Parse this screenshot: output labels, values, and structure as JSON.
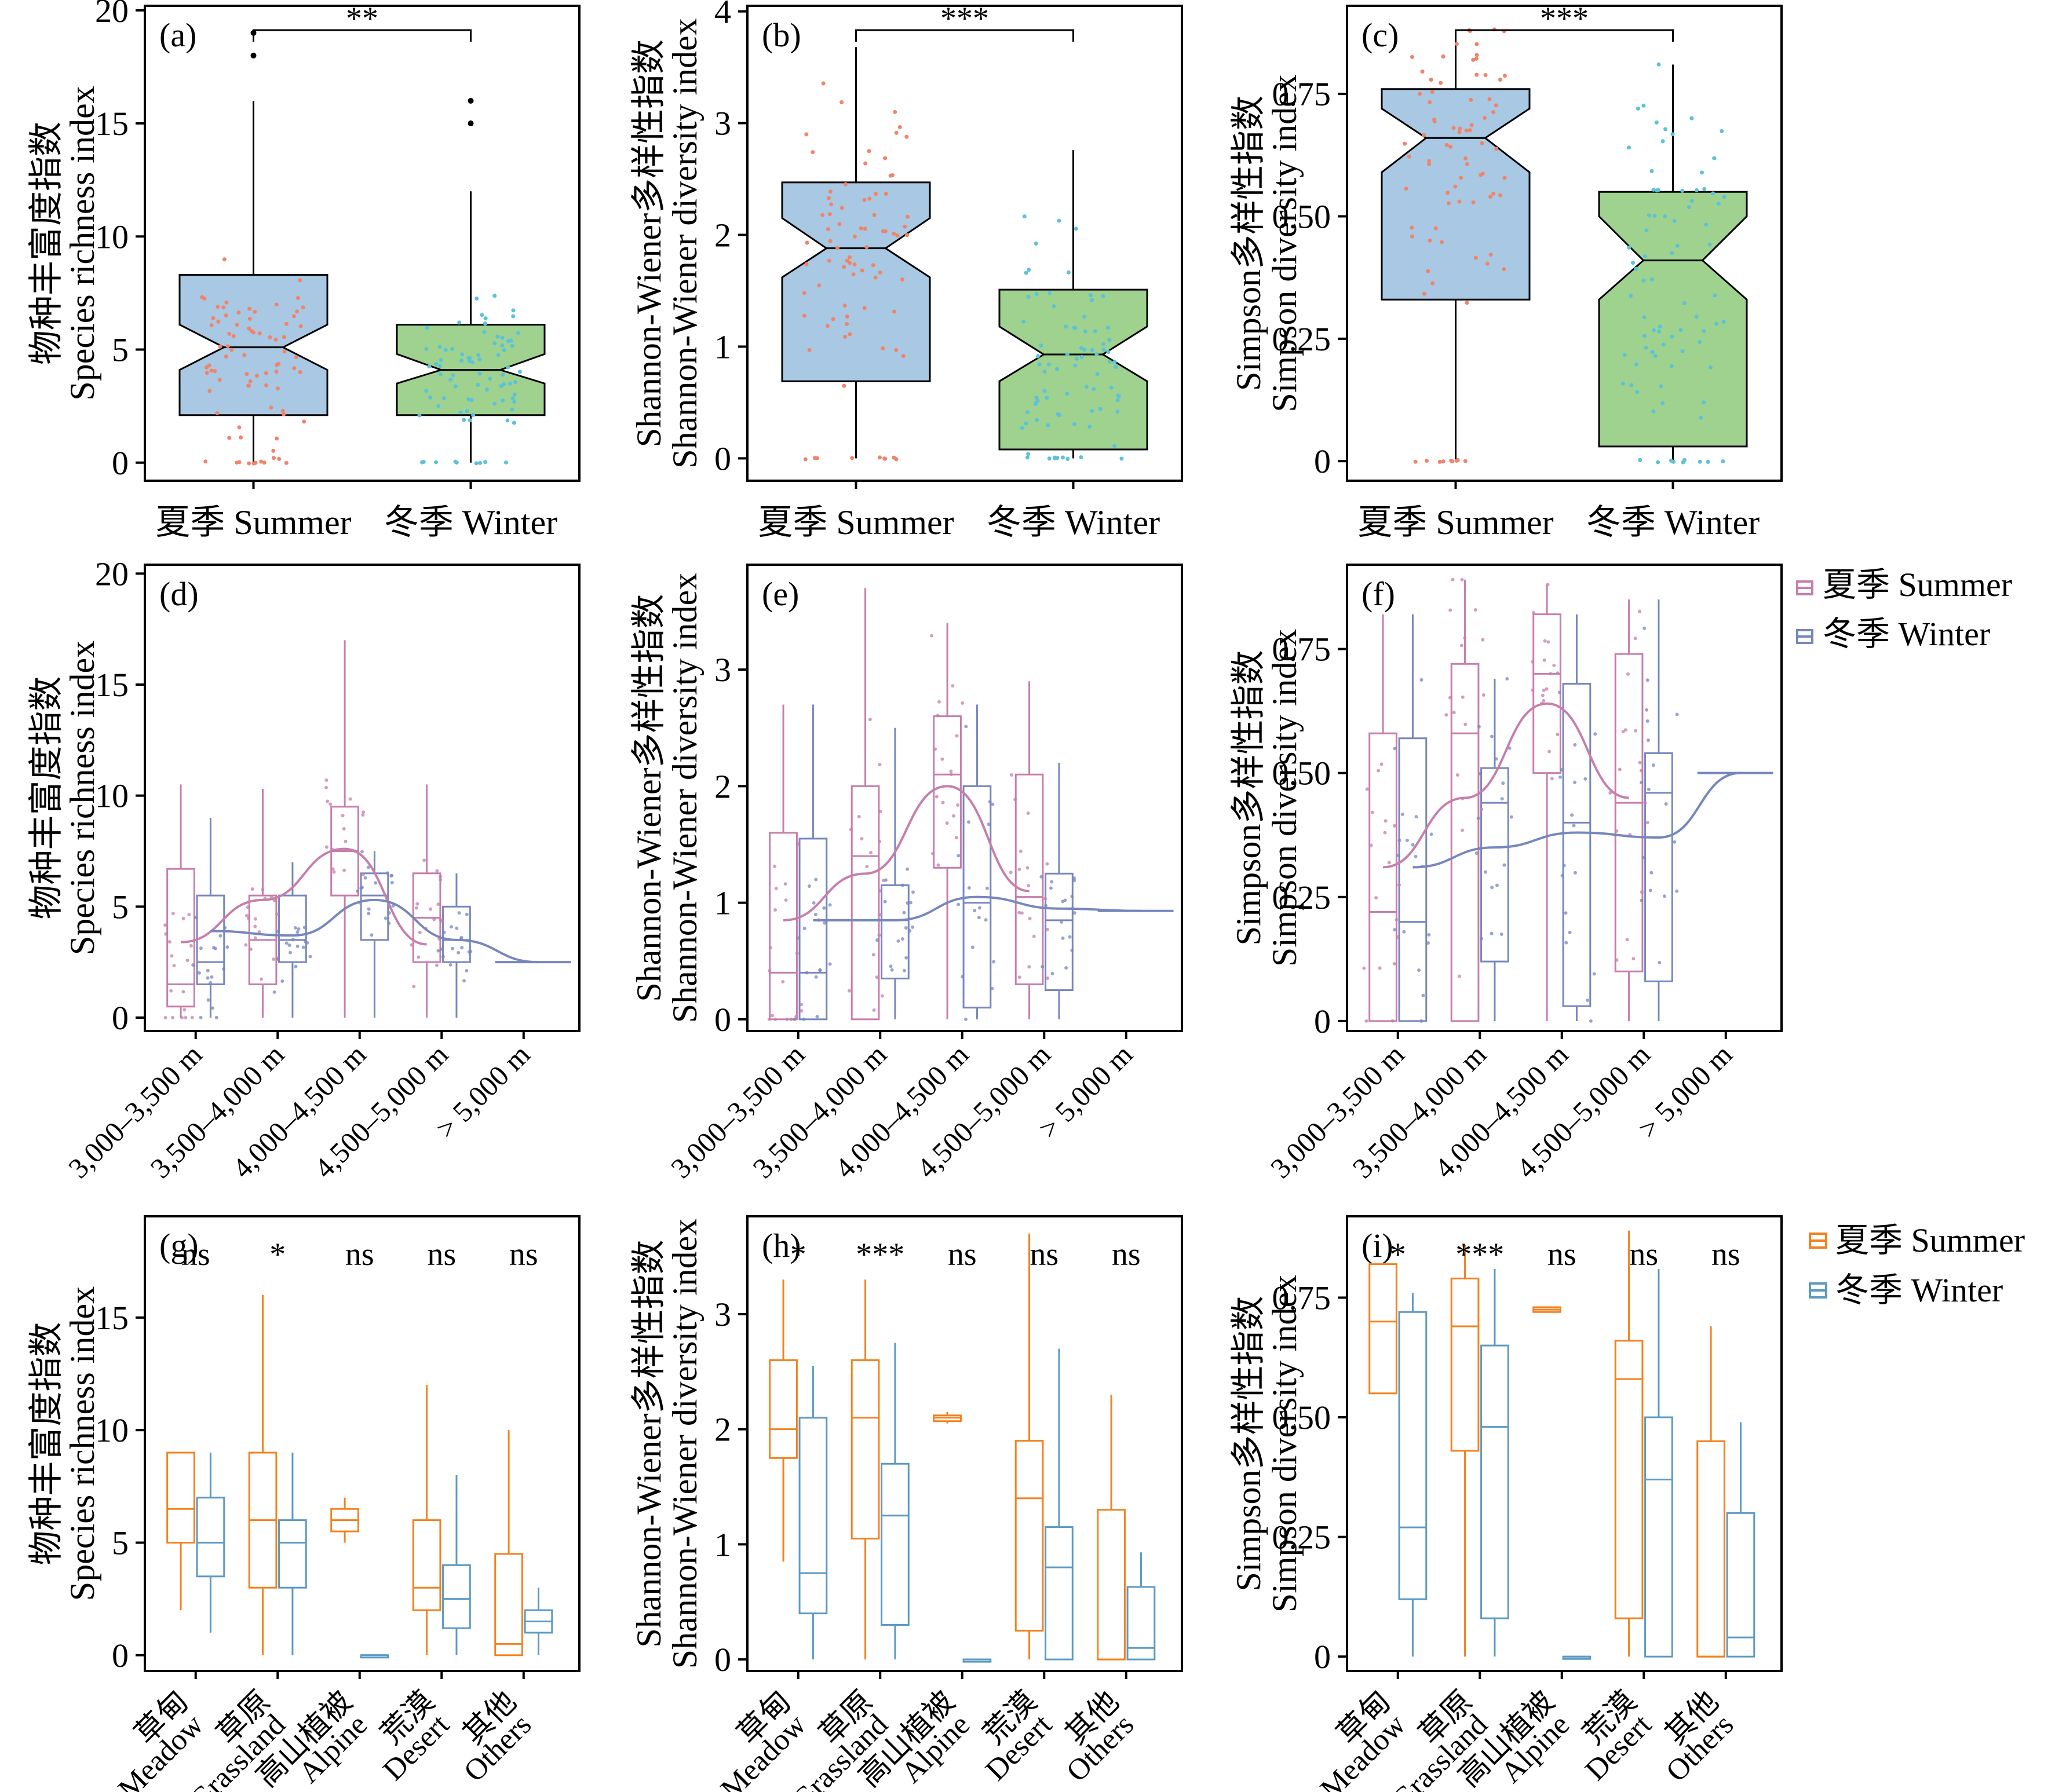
{
  "colors": {
    "summer_fill": "#a9c8e3",
    "winter_fill": "#9fd28f",
    "summer_dot": "#f0846a",
    "winter_dot": "#5cc2d8",
    "summer_line": "#c77eab",
    "winter_line": "#7687bd",
    "summer_hab": "#f2821f",
    "winter_hab": "#5b9ac4",
    "axis": "#000000"
  },
  "season_labels": [
    "夏季 Summer",
    "冬季 Winter"
  ],
  "legend_alt": {
    "summer": "夏季 Summer",
    "winter": "冬季 Winter"
  },
  "legend_hab": {
    "summer": "夏季 Summer",
    "winter": "冬季 Winter"
  },
  "chart_data": [
    {
      "id": "a",
      "type": "box",
      "panel_label": "(a)",
      "ylabel": [
        "物种丰富度指数",
        "Species richness index"
      ],
      "yticks": [
        0,
        5,
        10,
        15,
        20
      ],
      "ytick_labels": [
        "0",
        "5",
        "10",
        "15",
        "20"
      ],
      "ylim": [
        -0.8,
        20.2
      ],
      "categories": [
        "夏季 Summer",
        "冬季 Winter"
      ],
      "boxes": [
        {
          "q1": 2.1,
          "median": 5.1,
          "q3": 8.3,
          "min": 0,
          "max": 16,
          "notch": [
            4.1,
            6.1
          ],
          "outliers": [
            18,
            19
          ]
        },
        {
          "q1": 2.1,
          "median": 4.1,
          "q3": 6.1,
          "min": 0,
          "max": 12,
          "notch": [
            3.5,
            4.8
          ],
          "outliers": [
            15,
            16
          ]
        }
      ],
      "significance": "**"
    },
    {
      "id": "b",
      "type": "box",
      "panel_label": "(b)",
      "ylabel": [
        "Shannon-Wiener多样性指数",
        "Shannon-Wiener diversity index"
      ],
      "yticks": [
        0,
        1,
        2,
        3,
        4
      ],
      "ytick_labels": [
        "0",
        "1",
        "2",
        "3",
        "4"
      ],
      "ylim": [
        -0.2,
        4.05
      ],
      "categories": [
        "夏季 Summer",
        "冬季 Winter"
      ],
      "boxes": [
        {
          "q1": 0.69,
          "median": 1.88,
          "q3": 2.47,
          "min": 0,
          "max": 3.68,
          "notch": [
            1.62,
            2.15
          ],
          "outliers": []
        },
        {
          "q1": 0.08,
          "median": 0.93,
          "q3": 1.51,
          "min": 0,
          "max": 2.76,
          "notch": [
            0.69,
            1.18
          ],
          "outliers": []
        }
      ],
      "significance": "***"
    },
    {
      "id": "c",
      "type": "box",
      "panel_label": "(c)",
      "ylabel": [
        "Simpson多样性指数",
        "Simpson diversity index"
      ],
      "yticks": [
        0,
        0.25,
        0.5,
        0.75
      ],
      "ytick_labels": [
        "0",
        "0.25",
        "0.50",
        "0.75"
      ],
      "ylim": [
        -0.04,
        0.93
      ],
      "categories": [
        "夏季 Summer",
        "冬季 Winter"
      ],
      "boxes": [
        {
          "q1": 0.33,
          "median": 0.66,
          "q3": 0.76,
          "min": 0,
          "max": 0.88,
          "notch": [
            0.59,
            0.72
          ],
          "outliers": []
        },
        {
          "q1": 0.03,
          "median": 0.41,
          "q3": 0.55,
          "min": 0,
          "max": 0.81,
          "notch": [
            0.33,
            0.5
          ],
          "outliers": []
        }
      ],
      "significance": "***"
    },
    {
      "id": "d",
      "type": "box",
      "panel_label": "(d)",
      "ylabel": [
        "物种丰富度指数",
        "Species richness index"
      ],
      "yticks": [
        0,
        5,
        10,
        15,
        20
      ],
      "ytick_labels": [
        "0",
        "5",
        "10",
        "15",
        "20"
      ],
      "ylim": [
        -0.6,
        20.4
      ],
      "categories": [
        "3,000–3,500 m",
        "3,500–4,000 m",
        "4,000–4,500 m",
        "4,500–5,000 m",
        "> 5,000 m"
      ],
      "series": [
        {
          "name": "夏季 Summer",
          "boxes": [
            {
              "q1": 0.5,
              "median": 1.5,
              "q3": 6.7,
              "min": 0,
              "max": 10.5
            },
            {
              "q1": 1.5,
              "median": 3.5,
              "q3": 5.5,
              "min": 0,
              "max": 10.3
            },
            {
              "q1": 5.5,
              "median": 7.5,
              "q3": 9.5,
              "min": 0,
              "max": 17
            },
            {
              "q1": 2.5,
              "median": 4.5,
              "q3": 6.5,
              "min": 0,
              "max": 10.5
            },
            null
          ]
        },
        {
          "name": "冬季 Winter",
          "boxes": [
            {
              "q1": 1.5,
              "median": 2.5,
              "q3": 5.5,
              "min": 0,
              "max": 9
            },
            {
              "q1": 2.5,
              "median": 3.5,
              "q3": 5.5,
              "min": 0,
              "max": 7
            },
            {
              "q1": 3.5,
              "median": 5.5,
              "q3": 6.5,
              "min": 0,
              "max": 7.5
            },
            {
              "q1": 2.5,
              "median": 3.5,
              "q3": 5,
              "min": 0,
              "max": 6.5
            },
            {
              "q1": 2.5,
              "median": 2.5,
              "q3": 2.5,
              "min": 2.5,
              "max": 2.5
            }
          ]
        }
      ],
      "trend": [
        [
          3.4,
          5.3,
          7.6,
          3.3,
          null
        ],
        [
          3.9,
          3.7,
          5.3,
          3.5,
          2.5
        ]
      ]
    },
    {
      "id": "e",
      "type": "box",
      "panel_label": "(e)",
      "ylabel": [
        "Shannon-Wiener多样性指数",
        "Shannon-Wiener diversity index"
      ],
      "yticks": [
        0,
        1,
        2,
        3
      ],
      "ytick_labels": [
        "0",
        "1",
        "2",
        "3"
      ],
      "ylim": [
        -0.1,
        3.9
      ],
      "categories": [
        "3,000–3,500 m",
        "3,500–4,000 m",
        "4,000–4,500 m",
        "4,500–5,000 m",
        "> 5,000 m"
      ],
      "series": [
        {
          "name": "夏季 Summer",
          "boxes": [
            {
              "q1": 0,
              "median": 0.4,
              "q3": 1.6,
              "min": 0,
              "max": 2.7
            },
            {
              "q1": 0,
              "median": 1.4,
              "q3": 2,
              "min": 0,
              "max": 3.7
            },
            {
              "q1": 1.3,
              "median": 2.1,
              "q3": 2.6,
              "min": 0,
              "max": 3.4
            },
            {
              "q1": 0.3,
              "median": 1.05,
              "q3": 2.1,
              "min": 0,
              "max": 2.9
            },
            null
          ]
        },
        {
          "name": "冬季 Winter",
          "boxes": [
            {
              "q1": 0,
              "median": 0.4,
              "q3": 1.55,
              "min": 0,
              "max": 2.7
            },
            {
              "q1": 0.35,
              "median": 0.85,
              "q3": 1.15,
              "min": 0,
              "max": 2.5
            },
            {
              "q1": 0.1,
              "median": 1.0,
              "q3": 2.0,
              "min": 0,
              "max": 2.7
            },
            {
              "q1": 0.25,
              "median": 0.85,
              "q3": 1.25,
              "min": 0,
              "max": 2.2
            },
            {
              "q1": 0.93,
              "median": 0.93,
              "q3": 0.93,
              "min": 0.93,
              "max": 0.93
            }
          ]
        }
      ],
      "trend": [
        [
          0.85,
          1.25,
          2.0,
          1.1,
          null
        ],
        [
          0.85,
          0.85,
          1.05,
          0.95,
          0.93
        ]
      ]
    },
    {
      "id": "f",
      "type": "box",
      "panel_label": "(f)",
      "ylabel": [
        "Simpson多样性指数",
        "Simpson diversity index"
      ],
      "yticks": [
        0,
        0.25,
        0.5,
        0.75
      ],
      "ytick_labels": [
        "0",
        "0.25",
        "0.50",
        "0.75"
      ],
      "ylim": [
        -0.02,
        0.92
      ],
      "categories": [
        "3,000–3,500 m",
        "3,500–4,000 m",
        "4,000–4,500 m",
        "4,500–5,000 m",
        "> 5,000 m"
      ],
      "series": [
        {
          "name": "夏季 Summer",
          "boxes": [
            {
              "q1": 0,
              "median": 0.22,
              "q3": 0.58,
              "min": 0,
              "max": 0.82
            },
            {
              "q1": 0,
              "median": 0.58,
              "q3": 0.72,
              "min": 0,
              "max": 0.89
            },
            {
              "q1": 0.5,
              "median": 0.7,
              "q3": 0.82,
              "min": 0,
              "max": 0.88
            },
            {
              "q1": 0.1,
              "median": 0.44,
              "q3": 0.74,
              "min": 0,
              "max": 0.85
            },
            null
          ]
        },
        {
          "name": "冬季 Winter",
          "boxes": [
            {
              "q1": 0,
              "median": 0.2,
              "q3": 0.57,
              "min": 0,
              "max": 0.82
            },
            {
              "q1": 0.12,
              "median": 0.44,
              "q3": 0.51,
              "min": 0,
              "max": 0.69
            },
            {
              "q1": 0.03,
              "median": 0.4,
              "q3": 0.68,
              "min": 0,
              "max": 0.82
            },
            {
              "q1": 0.08,
              "median": 0.46,
              "q3": 0.54,
              "min": 0,
              "max": 0.85
            },
            {
              "q1": 0.5,
              "median": 0.5,
              "q3": 0.5,
              "min": 0.5,
              "max": 0.5
            }
          ]
        }
      ],
      "trend": [
        [
          0.31,
          0.45,
          0.64,
          0.45,
          null
        ],
        [
          0.31,
          0.35,
          0.38,
          0.37,
          0.5
        ]
      ]
    },
    {
      "id": "g",
      "type": "box",
      "panel_label": "(g)",
      "ylabel": [
        "物种丰富度指数",
        "Species richness index"
      ],
      "yticks": [
        0,
        5,
        10,
        15
      ],
      "ytick_labels": [
        "0",
        "5",
        "10",
        "15"
      ],
      "ylim": [
        -0.7,
        19.5
      ],
      "categories": [
        [
          "草甸",
          "Meadow"
        ],
        [
          "草原",
          "Grassland"
        ],
        [
          "高山植被",
          "Alpine"
        ],
        [
          "荒漠",
          "Desert"
        ],
        [
          "其他",
          "Others"
        ]
      ],
      "series": [
        {
          "name": "夏季 Summer",
          "boxes": [
            {
              "q1": 5,
              "median": 6.5,
              "q3": 9,
              "min": 2,
              "max": 9
            },
            {
              "q1": 3,
              "median": 6,
              "q3": 9,
              "min": 0,
              "max": 16
            },
            {
              "q1": 5.5,
              "median": 6,
              "q3": 6.5,
              "min": 5,
              "max": 7
            },
            {
              "q1": 2,
              "median": 3,
              "q3": 6,
              "min": 0,
              "max": 12
            },
            {
              "q1": 0,
              "median": 0.5,
              "q3": 4.5,
              "min": 0,
              "max": 10
            }
          ]
        },
        {
          "name": "冬季 Winter",
          "boxes": [
            {
              "q1": 3.5,
              "median": 5,
              "q3": 7,
              "min": 1,
              "max": 9
            },
            {
              "q1": 3,
              "median": 5,
              "q3": 6,
              "min": 0,
              "max": 9
            },
            {
              "q1": 0,
              "median": 0,
              "q3": 0,
              "min": 0,
              "max": 0
            },
            {
              "q1": 1.2,
              "median": 2.5,
              "q3": 4,
              "min": 0,
              "max": 8
            },
            {
              "q1": 1,
              "median": 1.5,
              "q3": 2,
              "min": 0,
              "max": 3
            }
          ]
        }
      ],
      "significance": [
        "ns",
        "*",
        "ns",
        "ns",
        "ns"
      ]
    },
    {
      "id": "h",
      "type": "box",
      "panel_label": "(h)",
      "ylabel": [
        "Shannon-Wiener多样性指数",
        "Shannon-Wiener diversity index"
      ],
      "yticks": [
        0,
        1,
        2,
        3
      ],
      "ytick_labels": [
        "0",
        "1",
        "2",
        "3"
      ],
      "ylim": [
        -0.1,
        3.85
      ],
      "categories": [
        [
          "草甸",
          "Meadow"
        ],
        [
          "草原",
          "Grassland"
        ],
        [
          "高山植被",
          "Alpine"
        ],
        [
          "荒漠",
          "Desert"
        ],
        [
          "其他",
          "Others"
        ]
      ],
      "series": [
        {
          "name": "夏季 Summer",
          "boxes": [
            {
              "q1": 1.75,
              "median": 2,
              "q3": 2.6,
              "min": 0.85,
              "max": 3.3
            },
            {
              "q1": 1.05,
              "median": 2.1,
              "q3": 2.6,
              "min": 0,
              "max": 3.3
            },
            {
              "q1": 2.07,
              "median": 2.1,
              "q3": 2.12,
              "min": 2.05,
              "max": 2.15
            },
            {
              "q1": 0.25,
              "median": 1.4,
              "q3": 1.9,
              "min": 0,
              "max": 3.7
            },
            {
              "q1": 0,
              "median": 0,
              "q3": 1.3,
              "min": 0,
              "max": 2.3
            }
          ]
        },
        {
          "name": "冬季 Winter",
          "boxes": [
            {
              "q1": 0.4,
              "median": 0.75,
              "q3": 2.1,
              "min": 0,
              "max": 2.55
            },
            {
              "q1": 0.3,
              "median": 1.25,
              "q3": 1.7,
              "min": 0,
              "max": 2.75
            },
            {
              "q1": 0,
              "median": 0,
              "q3": 0,
              "min": 0,
              "max": 0
            },
            {
              "q1": 0,
              "median": 0.8,
              "q3": 1.15,
              "min": 0,
              "max": 2.7
            },
            {
              "q1": 0,
              "median": 0.1,
              "q3": 0.63,
              "min": 0,
              "max": 0.93
            }
          ]
        }
      ],
      "significance": [
        "*",
        "***",
        "ns",
        "ns",
        "ns"
      ]
    },
    {
      "id": "i",
      "type": "box",
      "panel_label": "(i)",
      "ylabel": [
        "Simpson多样性指数",
        "Simpson diversity index"
      ],
      "yticks": [
        0,
        0.25,
        0.5,
        0.75
      ],
      "ytick_labels": [
        "0",
        "0.25",
        "0.50",
        "0.75"
      ],
      "ylim": [
        -0.03,
        0.92
      ],
      "categories": [
        [
          "草甸",
          "Meadow"
        ],
        [
          "草原",
          "Grassland"
        ],
        [
          "高山植被",
          "Alpine"
        ],
        [
          "荒漠",
          "Desert"
        ],
        [
          "其他",
          "Others"
        ]
      ],
      "series": [
        {
          "name": "夏季 Summer",
          "boxes": [
            {
              "q1": 0.55,
              "median": 0.7,
              "q3": 0.82,
              "min": 0.55,
              "max": 0.82
            },
            {
              "q1": 0.43,
              "median": 0.69,
              "q3": 0.79,
              "min": 0,
              "max": 0.86
            },
            {
              "q1": 0.72,
              "median": 0.725,
              "q3": 0.73,
              "min": 0.72,
              "max": 0.73
            },
            {
              "q1": 0.08,
              "median": 0.58,
              "q3": 0.66,
              "min": 0,
              "max": 0.89
            },
            {
              "q1": 0,
              "median": 0,
              "q3": 0.45,
              "min": 0,
              "max": 0.69
            }
          ]
        },
        {
          "name": "冬季 Winter",
          "boxes": [
            {
              "q1": 0.12,
              "median": 0.27,
              "q3": 0.72,
              "min": 0,
              "max": 0.76
            },
            {
              "q1": 0.08,
              "median": 0.48,
              "q3": 0.65,
              "min": 0,
              "max": 0.81
            },
            {
              "q1": 0,
              "median": 0,
              "q3": 0,
              "min": 0,
              "max": 0
            },
            {
              "q1": 0,
              "median": 0.37,
              "q3": 0.5,
              "min": 0,
              "max": 0.81
            },
            {
              "q1": 0,
              "median": 0.04,
              "q3": 0.3,
              "min": 0,
              "max": 0.49
            }
          ]
        }
      ],
      "significance": [
        "*",
        "***",
        "ns",
        "ns",
        "ns"
      ]
    }
  ]
}
